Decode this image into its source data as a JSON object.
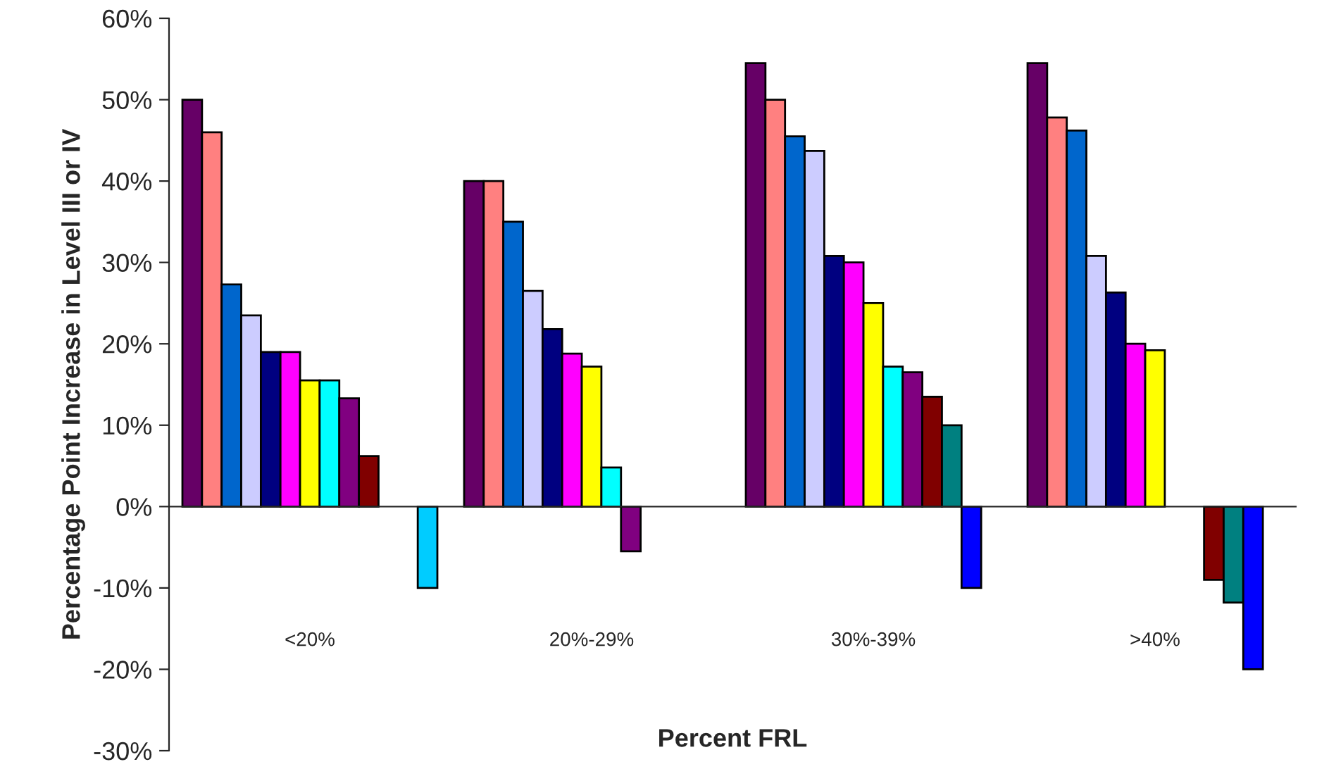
{
  "chart_data": {
    "type": "bar",
    "xlabel": "Percent FRL",
    "ylabel": "Percentage Point Increase in Level III or IV",
    "categories": [
      "<20%",
      "20%-29%",
      "30%-39%",
      ">40%"
    ],
    "series": [
      {
        "color": "#660066",
        "values": [
          50,
          40,
          54.5,
          54.5
        ]
      },
      {
        "color": "#ff8080",
        "values": [
          46,
          40,
          50,
          47.8
        ]
      },
      {
        "color": "#0066cc",
        "values": [
          27.3,
          35,
          45.5,
          46.2
        ]
      },
      {
        "color": "#ccccff",
        "values": [
          23.5,
          26.5,
          43.7,
          30.8
        ]
      },
      {
        "color": "#000080",
        "values": [
          19,
          21.8,
          30.8,
          26.3
        ]
      },
      {
        "color": "#ff00ff",
        "values": [
          19,
          18.8,
          30,
          20
        ]
      },
      {
        "color": "#ffff00",
        "values": [
          15.5,
          17.2,
          25,
          19.2
        ]
      },
      {
        "color": "#00ffff",
        "values": [
          15.5,
          4.8,
          17.2,
          null
        ]
      },
      {
        "color": "#800080",
        "values": [
          13.3,
          -5.5,
          16.5,
          null
        ]
      },
      {
        "color": "#800000",
        "values": [
          6.2,
          null,
          13.5,
          -9
        ]
      },
      {
        "color": "#008080",
        "values": [
          null,
          null,
          10,
          -11.8
        ]
      },
      {
        "color": "#0000ff",
        "values": [
          null,
          null,
          -10,
          -20
        ]
      },
      {
        "color": "#00ccff",
        "values": [
          -10,
          null,
          null,
          null
        ]
      }
    ],
    "ylim": [
      -30,
      60
    ],
    "yticks": [
      {
        "value": -30,
        "label": "-30%"
      },
      {
        "value": -20,
        "label": "-20%"
      },
      {
        "value": -10,
        "label": "-10%"
      },
      {
        "value": 0,
        "label": "0%"
      },
      {
        "value": 10,
        "label": "10%"
      },
      {
        "value": 20,
        "label": "20%"
      },
      {
        "value": 30,
        "label": "30%"
      },
      {
        "value": 40,
        "label": "40%"
      },
      {
        "value": 50,
        "label": "50%"
      },
      {
        "value": 60,
        "label": "60%"
      }
    ],
    "legend": false
  }
}
